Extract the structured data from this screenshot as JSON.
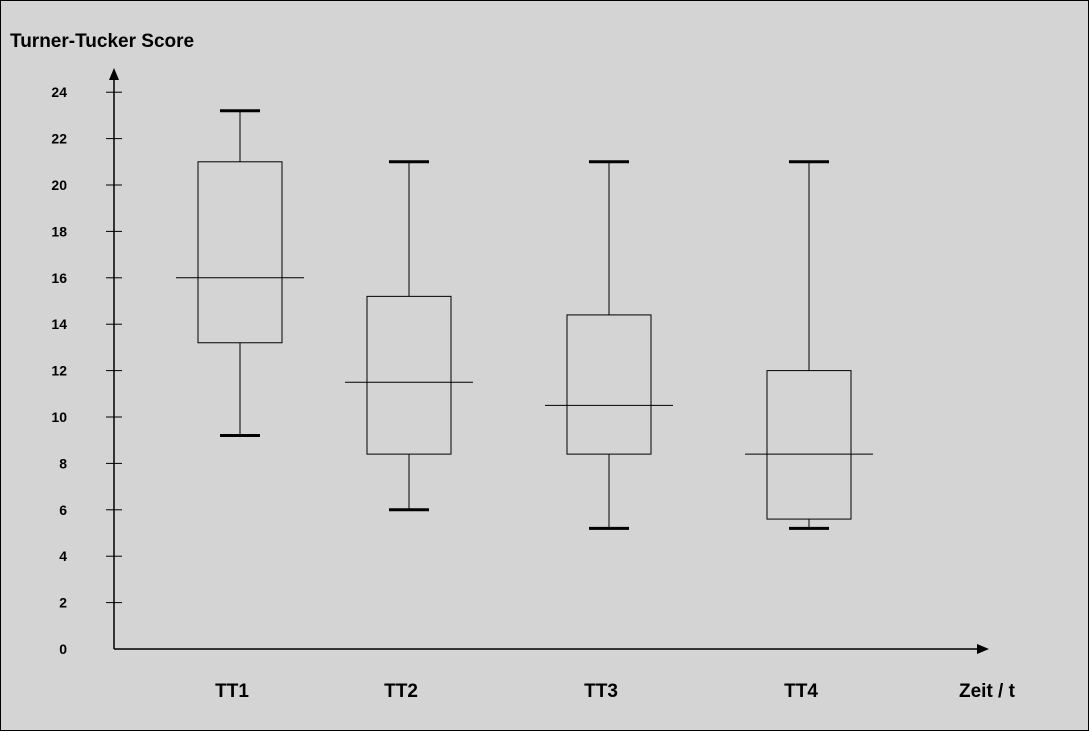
{
  "chart_data": {
    "type": "boxplot",
    "title": "Turner-Tucker Score",
    "xlabel": "Zeit / t",
    "ylabel": "",
    "categories": [
      "TT1",
      "TT2",
      "TT3",
      "TT4"
    ],
    "boxes": [
      {
        "category": "TT1",
        "whisker_low": 9.2,
        "q1": 13.2,
        "median": 16,
        "q3": 21,
        "whisker_high": 23.2
      },
      {
        "category": "TT2",
        "whisker_low": 6,
        "q1": 8.4,
        "median": 11.5,
        "q3": 15.2,
        "whisker_high": 21
      },
      {
        "category": "TT3",
        "whisker_low": 5.2,
        "q1": 8.4,
        "median": 10.5,
        "q3": 14.4,
        "whisker_high": 21
      },
      {
        "category": "TT4",
        "whisker_low": 5.2,
        "q1": 5.6,
        "median": 8.4,
        "q3": 12,
        "whisker_high": 21
      }
    ],
    "yticks": [
      "0",
      "2",
      "4",
      "6",
      "8",
      "10",
      "12",
      "14",
      "16",
      "18",
      "20",
      "22",
      "24"
    ],
    "ylim": [
      0,
      24
    ],
    "grid": false,
    "colors": {
      "background": "#d4d4d4",
      "line": "#000000"
    }
  }
}
